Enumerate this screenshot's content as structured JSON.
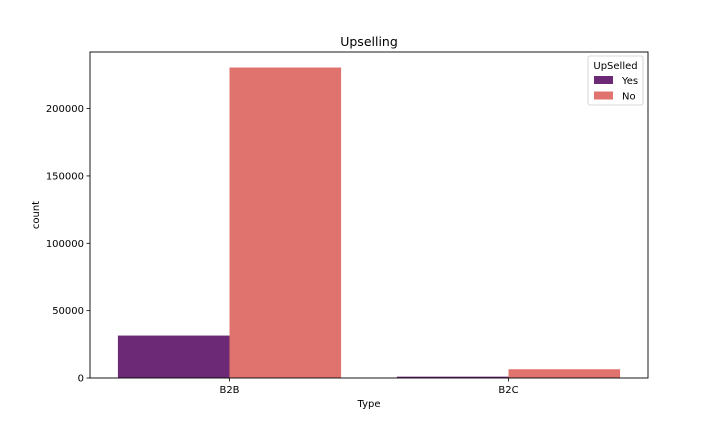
{
  "chart_data": {
    "type": "bar",
    "title": "Upselling",
    "xlabel": "Type",
    "ylabel": "count",
    "categories": [
      "B2B",
      "B2C"
    ],
    "series": [
      {
        "name": "Yes",
        "color": "#6c2a76",
        "values": [
          31500,
          1000
        ]
      },
      {
        "name": "No",
        "color": "#e0736e",
        "values": [
          230500,
          6500
        ]
      }
    ],
    "ylim": [
      0,
      242000
    ],
    "yticks": [
      0,
      50000,
      100000,
      150000,
      200000
    ],
    "legend": {
      "title": "UpSelled",
      "position": "top-right"
    },
    "grid": false
  }
}
